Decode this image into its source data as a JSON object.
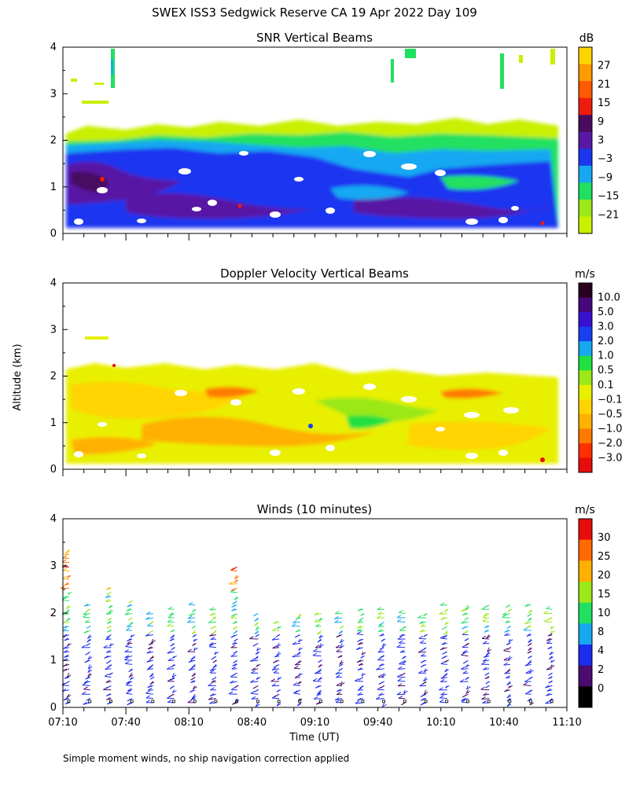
{
  "title": "SWEX ISS3 Sedgwick Reserve CA  19 Apr 2022 Day 109",
  "footnote": "Simple moment winds, no ship navigation correction applied",
  "shared_axes": {
    "ylabel": "Altitude (km)",
    "xlabel": "Time (UT)",
    "yticks": [
      "0",
      "1",
      "2",
      "3",
      "4"
    ],
    "xticks": [
      "07:10",
      "07:40",
      "08:10",
      "08:40",
      "09:10",
      "09:40",
      "10:10",
      "10:40",
      "11:10"
    ],
    "xlim_hours": [
      7.1667,
      11.1667
    ],
    "ylim_km": [
      0,
      4
    ]
  },
  "chart_data": [
    {
      "type": "heatmap",
      "title": "SNR Vertical Beams",
      "unit": "dB",
      "xlabel": "Time (UT)",
      "ylabel": "Altitude (km)",
      "colorbar": {
        "labels": [
          "27",
          "21",
          "15",
          "9",
          "3",
          "−3",
          "−9",
          "−15",
          "−21"
        ],
        "colors": [
          "#ffd400",
          "#ff9a00",
          "#ff5a00",
          "#ee1c0c",
          "#4a0c5e",
          "#5818a4",
          "#1c36f0",
          "#18a8f2",
          "#20e060",
          "#9ae818",
          "#c8f000"
        ]
      },
      "data_top_km_approx": 2.0,
      "note": "Strong returns (blue/purple) below ~1.8 km, weaker cyan/green/yellow up to ~2.4 km; sparse echoes near 3–4 km."
    },
    {
      "type": "heatmap",
      "title": "Doppler Velocity Vertical Beams",
      "unit": "m/s",
      "xlabel": "Time (UT)",
      "ylabel": "Altitude (km)",
      "colorbar": {
        "labels": [
          "10.0",
          "5.0",
          "3.0",
          "2.0",
          "1.0",
          "0.5",
          "0.1",
          "−0.1",
          "−0.5",
          "−1.0",
          "−2.0",
          "−3.0"
        ],
        "colors": [
          "#2a0020",
          "#46087a",
          "#3a10d0",
          "#1840f0",
          "#18a8f0",
          "#20e040",
          "#9ae818",
          "#e8f000",
          "#ffd400",
          "#ffb000",
          "#ff7a00",
          "#ff3000",
          "#e80c0c"
        ]
      },
      "note": "Mostly -0.1 to -1.0 m/s (yellow/orange) below ~2 km."
    },
    {
      "type": "wind_barbs",
      "title": "Winds (10 minutes)",
      "unit": "m/s",
      "xlabel": "Time (UT)",
      "ylabel": "Altitude (km)",
      "colorbar": {
        "labels": [
          "30",
          "25",
          "20",
          "15",
          "10",
          "8",
          "4",
          "2",
          "0"
        ],
        "colors": [
          "#e80c0c",
          "#ff6a00",
          "#ffb000",
          "#9ae818",
          "#20e060",
          "#18a8f0",
          "#1c2cf0",
          "#4a0c70",
          "#000000"
        ]
      },
      "profile_times": [
        "07:10",
        "07:20",
        "07:30",
        "07:40",
        "07:50",
        "08:00",
        "08:10",
        "08:20",
        "08:30",
        "08:40",
        "08:50",
        "09:00",
        "09:10",
        "09:20",
        "09:30",
        "09:40",
        "09:50",
        "10:00",
        "10:10",
        "10:20",
        "10:30",
        "10:40",
        "10:50",
        "11:00"
      ],
      "profile_top_km": [
        3.4,
        2.2,
        2.6,
        2.3,
        2.0,
        2.1,
        2.2,
        2.1,
        3.0,
        2.0,
        1.9,
        2.0,
        2.0,
        2.0,
        2.1,
        2.1,
        2.0,
        2.0,
        2.2,
        2.2,
        2.2,
        2.2,
        2.2,
        2.1
      ],
      "note": "Light winds (<8 m/s, purple/blue) at most levels; stronger 10–20 m/s near 2 km; isolated red barbs near 3.3 km."
    }
  ]
}
